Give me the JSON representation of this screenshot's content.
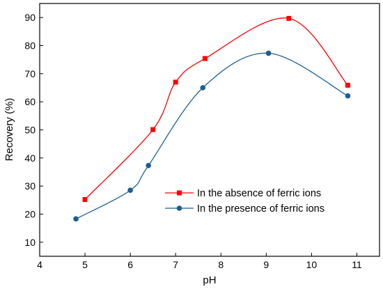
{
  "chart_data": {
    "type": "line",
    "xlabel": "pH",
    "ylabel": "Recovery (%)",
    "xlim": [
      4,
      11.5
    ],
    "ylim": [
      5,
      95
    ],
    "xticks": [
      4,
      5,
      6,
      7,
      8,
      9,
      10,
      11
    ],
    "yticks": [
      10,
      20,
      30,
      40,
      50,
      60,
      70,
      80,
      90
    ],
    "grid": false,
    "legend_position": "lower-right",
    "series": [
      {
        "name": "In the absence of ferric ions",
        "color": "#ff0000",
        "marker": "square",
        "x": [
          5.0,
          6.5,
          7.0,
          7.65,
          9.5,
          10.8
        ],
        "y": [
          25.2,
          50.1,
          67.0,
          75.4,
          89.7,
          65.9
        ]
      },
      {
        "name": "In the presence of ferric ions",
        "color": "#1b5e96",
        "marker": "circle",
        "x": [
          4.8,
          6.0,
          6.4,
          7.6,
          9.05,
          10.8
        ],
        "y": [
          18.3,
          28.5,
          37.3,
          65.0,
          77.3,
          62.1
        ]
      }
    ]
  }
}
